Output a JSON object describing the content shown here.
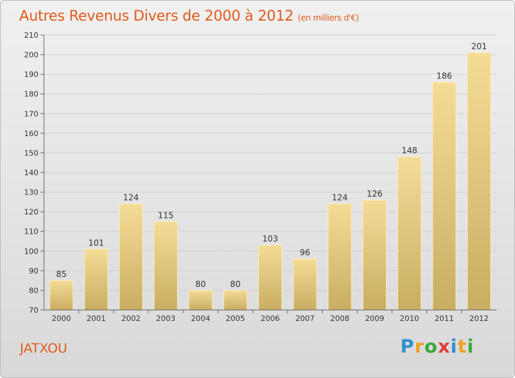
{
  "header": {
    "title": "Autres Revenus Divers de 2000 à 2012",
    "unit": "(en milliers d'€)"
  },
  "footer": {
    "city": "JATXOU",
    "logo_text": "Proxiti"
  },
  "colors": {
    "title": "#e05a1c",
    "bar_top": "#f5dc96",
    "bar_bottom": "#c9ad63",
    "logo_letters": [
      "#2f8fd0",
      "#f0a020",
      "#3aaa3a",
      "#e03a3a",
      "#2f8fd0",
      "#f0a020",
      "#3aaa3a"
    ]
  },
  "chart_data": {
    "type": "bar",
    "title": "Autres Revenus Divers de 2000 à 2012",
    "subtitle": "(en milliers d'€)",
    "categories": [
      "2000",
      "2001",
      "2002",
      "2003",
      "2004",
      "2005",
      "2006",
      "2007",
      "2008",
      "2009",
      "2010",
      "2011",
      "2012"
    ],
    "values": [
      85,
      101,
      124,
      115,
      80,
      80,
      103,
      96,
      124,
      126,
      148,
      186,
      201
    ],
    "ylim": [
      70,
      210
    ],
    "yticks": [
      70,
      80,
      90,
      100,
      110,
      120,
      130,
      140,
      150,
      160,
      170,
      180,
      190,
      200,
      210
    ],
    "grid": true,
    "xlabel": "",
    "ylabel": ""
  }
}
